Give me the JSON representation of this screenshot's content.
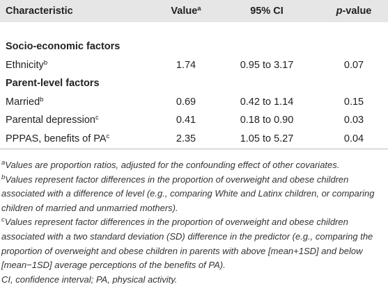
{
  "table": {
    "header": [
      {
        "text": "Characteristic"
      },
      {
        "text": "Value",
        "sup": "a"
      },
      {
        "text": "95% CI"
      },
      {
        "italic": "p",
        "text": "-value"
      }
    ],
    "sections": [
      {
        "title": "Socio-economic factors",
        "rows": [
          [
            {
              "text": "Ethnicity",
              "sup": "b"
            },
            "1.74",
            "0.95 to 3.17",
            "0.07"
          ]
        ]
      },
      {
        "title": "Parent-level factors",
        "rows": [
          [
            {
              "text": "Married",
              "sup": "b"
            },
            "0.69",
            "0.42 to 1.14",
            "0.15"
          ],
          [
            {
              "text": "Parental depression",
              "sup": "c"
            },
            "0.41",
            "0.18 to 0.90",
            "0.03"
          ],
          [
            {
              "text": "PPPAS, benefits of PA",
              "sup": "c"
            },
            "2.35",
            "1.05 to 5.27",
            "0.04"
          ]
        ]
      }
    ]
  },
  "footnotes": [
    {
      "sup": "a",
      "text": "Values are proportion ratios, adjusted for the confounding effect of other covariates."
    },
    {
      "sup": "b",
      "text": "Values represent factor differences in the proportion of overweight and obese children associated with a difference of level (e.g., comparing White and Latinx children, or comparing children of married and unmarried mothers)."
    },
    {
      "sup": "c",
      "text": "Values represent factor differences in the proportion of overweight and obese children associated with a two standard deviation (SD) difference in the predictor (e.g., comparing the proportion of overweight and obese children in parents with above [mean+1SD] and below [mean−1SD] average perceptions of the benefits of PA)."
    },
    {
      "text": "CI, confidence interval; PA, physical activity."
    }
  ]
}
